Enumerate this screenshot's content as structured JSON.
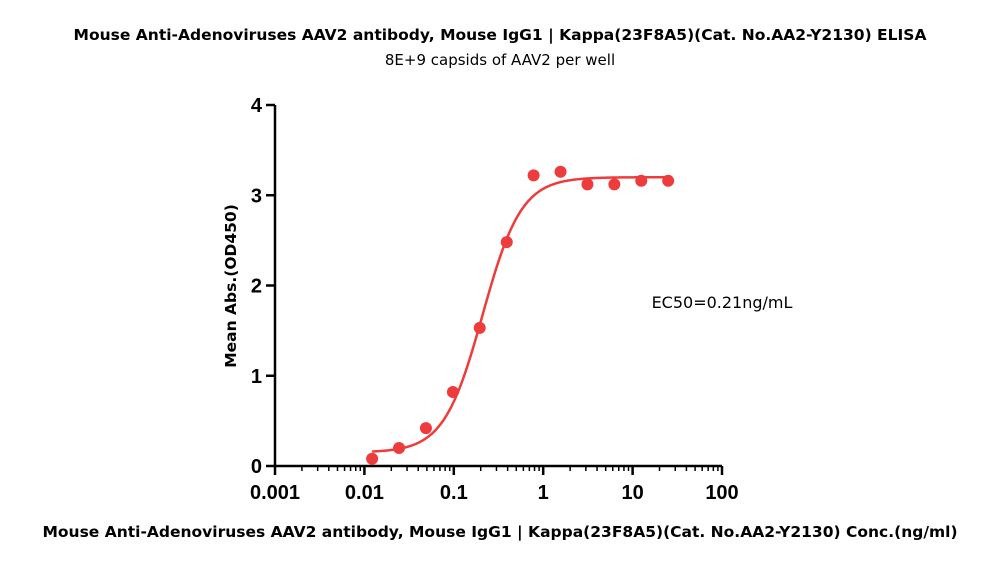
{
  "chart_data": {
    "type": "scatter",
    "title": "Mouse Anti-Adenoviruses AAV2 antibody, Mouse IgG1 | Kappa(23F8A5)(Cat. No.AA2-Y2130)  ELISA",
    "subtitle": "8E+9 capsids of AAV2 per well",
    "xlabel": "Mouse Anti-Adenoviruses AAV2 antibody, Mouse IgG1 | Kappa(23F8A5)(Cat. No.AA2-Y2130)  Conc.(ng/ml)",
    "ylabel": "Mean Abs.(OD450)",
    "x_scale": "log",
    "xlim": [
      0.001,
      100
    ],
    "ylim": [
      0,
      4
    ],
    "x_ticks": [
      0.001,
      0.01,
      0.1,
      1,
      10,
      100
    ],
    "x_tick_labels": [
      "0.001",
      "0.01",
      "0.1",
      "1",
      "10",
      "100"
    ],
    "y_ticks": [
      0,
      1,
      2,
      3,
      4
    ],
    "y_tick_labels": [
      "0",
      "1",
      "2",
      "3",
      "4"
    ],
    "grid": false,
    "color": "#ee3b3b",
    "annotation": "EC50=0.21ng/mL",
    "series": [
      {
        "points": [
          {
            "x": 0.0122,
            "y": 0.08
          },
          {
            "x": 0.0244,
            "y": 0.2
          },
          {
            "x": 0.0488,
            "y": 0.42
          },
          {
            "x": 0.0977,
            "y": 0.82
          },
          {
            "x": 0.195,
            "y": 1.53
          },
          {
            "x": 0.391,
            "y": 2.48
          },
          {
            "x": 0.781,
            "y": 3.22
          },
          {
            "x": 1.5625,
            "y": 3.26
          },
          {
            "x": 3.125,
            "y": 3.12
          },
          {
            "x": 6.25,
            "y": 3.12
          },
          {
            "x": 12.5,
            "y": 3.16
          },
          {
            "x": 25,
            "y": 3.16
          }
        ],
        "fit": {
          "model": "4PL",
          "bottom": 0.15,
          "top": 3.2,
          "ec50": 0.21,
          "hill": 2.0,
          "x_range": [
            0.0122,
            25
          ]
        }
      }
    ]
  }
}
